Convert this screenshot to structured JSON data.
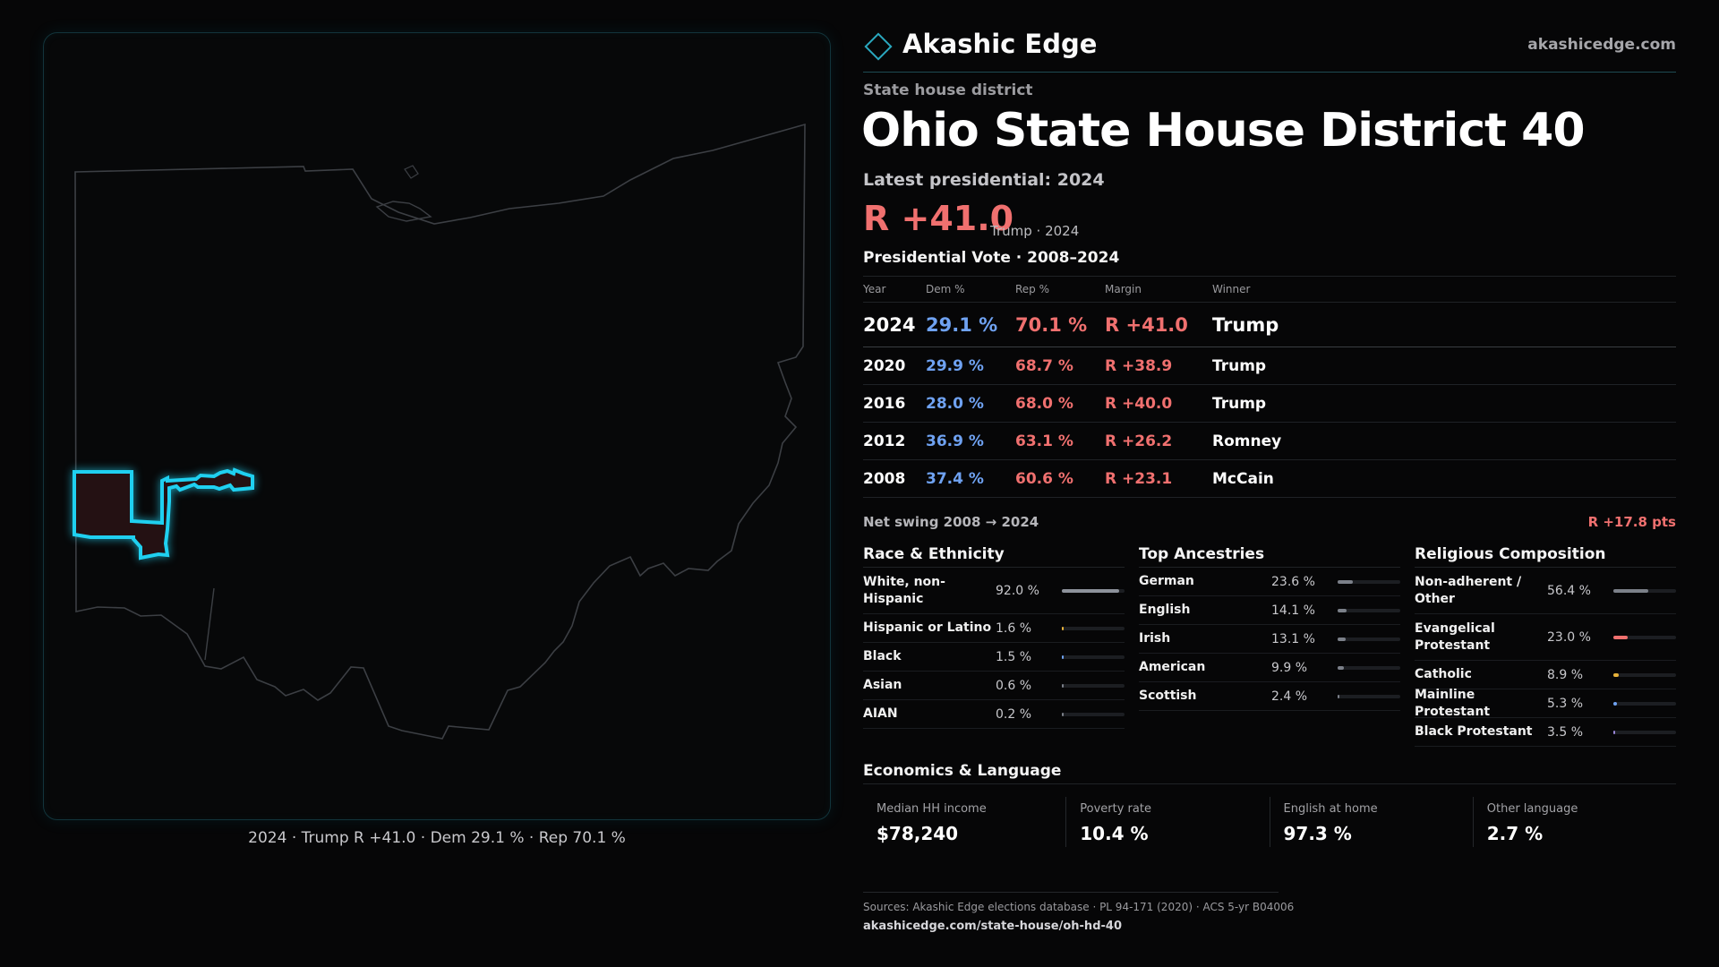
{
  "brand": {
    "name": "Akashic Edge",
    "url": "akashicedge.com",
    "icon": "diamond-icon"
  },
  "eyebrow": "State house district",
  "title": "Ohio State House District 40",
  "latest_label": "Latest presidential: 2024",
  "headline_margin": "R +41.0",
  "headline_sub": "Trump · 2024",
  "map_caption": "2024 · Trump R +41.0 · Dem 29.1 % · Rep 70.1 %",
  "presidential": {
    "title": "Presidential Vote · 2008–2024",
    "columns": {
      "year": "Year",
      "dem": "Dem %",
      "rep": "Rep %",
      "margin": "Margin",
      "winner": "Winner"
    },
    "rows": [
      {
        "year": "2024",
        "dem": "29.1 %",
        "rep": "70.1 %",
        "margin": "R +41.0",
        "winner": "Trump"
      },
      {
        "year": "2020",
        "dem": "29.9 %",
        "rep": "68.7 %",
        "margin": "R +38.9",
        "winner": "Trump"
      },
      {
        "year": "2016",
        "dem": "28.0 %",
        "rep": "68.0 %",
        "margin": "R +40.0",
        "winner": "Trump"
      },
      {
        "year": "2012",
        "dem": "36.9 %",
        "rep": "63.1 %",
        "margin": "R +26.2",
        "winner": "Romney"
      },
      {
        "year": "2008",
        "dem": "37.4 %",
        "rep": "60.6 %",
        "margin": "R +23.1",
        "winner": "McCain"
      }
    ]
  },
  "net_swing": {
    "label": "Net swing 2008 → 2024",
    "value": "R +17.8 pts"
  },
  "race": {
    "title": "Race & Ethnicity",
    "rows": [
      {
        "label": "White, non-Hispanic",
        "value": "92.0 %",
        "pct": 92.0
      },
      {
        "label": "Hispanic or Latino",
        "value": "1.6 %",
        "pct": 1.6
      },
      {
        "label": "Black",
        "value": "1.5 %",
        "pct": 1.5
      },
      {
        "label": "Asian",
        "value": "0.6 %",
        "pct": 0.6
      },
      {
        "label": "AIAN",
        "value": "0.2 %",
        "pct": 0.2
      }
    ]
  },
  "ancestry": {
    "title": "Top Ancestries",
    "rows": [
      {
        "label": "German",
        "value": "23.6 %",
        "pct": 23.6
      },
      {
        "label": "English",
        "value": "14.1 %",
        "pct": 14.1
      },
      {
        "label": "Irish",
        "value": "13.1 %",
        "pct": 13.1
      },
      {
        "label": "American",
        "value": "9.9 %",
        "pct": 9.9
      },
      {
        "label": "Scottish",
        "value": "2.4 %",
        "pct": 2.4
      }
    ]
  },
  "religion": {
    "title": "Religious Composition",
    "rows": [
      {
        "label": "Non-adherent / Other",
        "value": "56.4 %",
        "pct": 56.4,
        "color": "#7b8089"
      },
      {
        "label": "Evangelical Protestant",
        "value": "23.0 %",
        "pct": 23.0,
        "color": "#f0706f"
      },
      {
        "label": "Catholic",
        "value": "8.9 %",
        "pct": 8.9,
        "color": "#e7b23a"
      },
      {
        "label": "Mainline Protestant",
        "value": "5.3 %",
        "pct": 5.3,
        "color": "#6fa2f2"
      },
      {
        "label": "Black Protestant",
        "value": "3.5 %",
        "pct": 3.5,
        "color": "#9a86d8"
      }
    ]
  },
  "economics": {
    "title": "Economics & Language",
    "cards": [
      {
        "label": "Median HH income",
        "value": "$78,240"
      },
      {
        "label": "Poverty rate",
        "value": "10.4 %"
      },
      {
        "label": "English at home",
        "value": "97.3 %"
      },
      {
        "label": "Other language",
        "value": "2.7 %"
      }
    ]
  },
  "sources": "Sources: Akashic Edge elections database · PL 94-171 (2020) · ACS 5-yr B04006",
  "footer_url": "akashicedge.com/state-house/oh-hd-40",
  "colors": {
    "dem": "#6fa2f2",
    "rep": "#f0706f",
    "accent": "#2ad4f0",
    "bar_neutral": "#7b8089"
  }
}
